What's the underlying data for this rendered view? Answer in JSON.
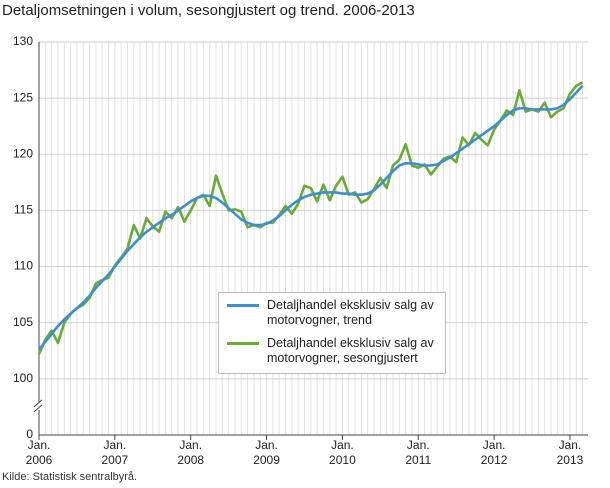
{
  "chart_data": {
    "type": "line",
    "title": "Detaljomsetningen i volum, sesongjustert og trend. 2006-2013",
    "source": "Kilde: Statistisk sentralbyrå.",
    "x": [
      "2006-01",
      "2006-02",
      "2006-03",
      "2006-04",
      "2006-05",
      "2006-06",
      "2006-07",
      "2006-08",
      "2006-09",
      "2006-10",
      "2006-11",
      "2006-12",
      "2007-01",
      "2007-02",
      "2007-03",
      "2007-04",
      "2007-05",
      "2007-06",
      "2007-07",
      "2007-08",
      "2007-09",
      "2007-10",
      "2007-11",
      "2007-12",
      "2008-01",
      "2008-02",
      "2008-03",
      "2008-04",
      "2008-05",
      "2008-06",
      "2008-07",
      "2008-08",
      "2008-09",
      "2008-10",
      "2008-11",
      "2008-12",
      "2009-01",
      "2009-02",
      "2009-03",
      "2009-04",
      "2009-05",
      "2009-06",
      "2009-07",
      "2009-08",
      "2009-09",
      "2009-10",
      "2009-11",
      "2009-12",
      "2010-01",
      "2010-02",
      "2010-03",
      "2010-04",
      "2010-05",
      "2010-06",
      "2010-07",
      "2010-08",
      "2010-09",
      "2010-10",
      "2010-11",
      "2010-12",
      "2011-01",
      "2011-02",
      "2011-03",
      "2011-04",
      "2011-05",
      "2011-06",
      "2011-07",
      "2011-08",
      "2011-09",
      "2011-10",
      "2011-11",
      "2011-12",
      "2012-01",
      "2012-02",
      "2012-03",
      "2012-04",
      "2012-05",
      "2012-06",
      "2012-07",
      "2012-08",
      "2012-09",
      "2012-10",
      "2012-11",
      "2012-12",
      "2013-01",
      "2013-02",
      "2013-03"
    ],
    "xticks": [
      {
        "value": "2006-01",
        "label": "Jan. 2006"
      },
      {
        "value": "2007-01",
        "label": "Jan. 2007"
      },
      {
        "value": "2008-01",
        "label": "Jan. 2008"
      },
      {
        "value": "2009-01",
        "label": "Jan. 2009"
      },
      {
        "value": "2010-01",
        "label": "Jan. 2010"
      },
      {
        "value": "2011-01",
        "label": "Jan. 2011"
      },
      {
        "value": "2012-01",
        "label": "Jan. 2012"
      },
      {
        "value": "2013-01",
        "label": "Jan. 2013"
      }
    ],
    "ylim": [
      0,
      130
    ],
    "y_break": [
      0,
      100
    ],
    "yticks": [
      0,
      100,
      105,
      110,
      115,
      120,
      125,
      130
    ],
    "grid": true,
    "legend": "lower center",
    "series": [
      {
        "name": "Detaljhandel eksklusiv salg av motorvogner, trend",
        "color": "#3b8fd0",
        "values": [
          102.6,
          103.3,
          104.0,
          104.7,
          105.3,
          105.8,
          106.3,
          106.8,
          107.4,
          108.1,
          108.7,
          109.3,
          110.0,
          110.7,
          111.4,
          112.0,
          112.6,
          113.1,
          113.5,
          113.9,
          114.3,
          114.6,
          115.0,
          115.4,
          115.8,
          116.1,
          116.3,
          116.3,
          116.1,
          115.7,
          115.2,
          114.7,
          114.2,
          113.9,
          113.7,
          113.7,
          113.8,
          114.1,
          114.5,
          115.0,
          115.5,
          115.9,
          116.2,
          116.4,
          116.5,
          116.6,
          116.6,
          116.6,
          116.5,
          116.5,
          116.4,
          116.4,
          116.5,
          116.8,
          117.3,
          117.9,
          118.5,
          119.0,
          119.2,
          119.2,
          119.1,
          119.0,
          119.0,
          119.1,
          119.4,
          119.7,
          120.1,
          120.5,
          120.9,
          121.3,
          121.7,
          122.1,
          122.5,
          123.0,
          123.5,
          123.9,
          124.1,
          124.1,
          124.0,
          124.0,
          124.0,
          124.0,
          124.1,
          124.4,
          124.9,
          125.5,
          126.1
        ]
      },
      {
        "name": "Detaljhandel eksklusiv salg av motorvogner, sesongjustert",
        "color": "#6aab35",
        "values": [
          102.2,
          103.5,
          104.3,
          103.2,
          105.0,
          105.8,
          106.3,
          106.6,
          107.2,
          108.5,
          108.8,
          109.0,
          110.1,
          110.8,
          111.6,
          113.7,
          112.5,
          114.3,
          113.6,
          113.1,
          114.9,
          114.3,
          115.3,
          114.0,
          115.0,
          116.1,
          116.4,
          115.4,
          118.1,
          116.5,
          115.0,
          115.1,
          114.9,
          113.5,
          113.7,
          113.5,
          113.9,
          113.9,
          114.6,
          115.4,
          114.7,
          115.6,
          117.2,
          117.0,
          115.8,
          117.3,
          115.9,
          117.2,
          118.0,
          116.4,
          116.6,
          115.7,
          116.0,
          116.9,
          117.9,
          117.0,
          119.0,
          119.5,
          120.9,
          119.0,
          118.8,
          119.1,
          118.2,
          118.9,
          119.6,
          119.8,
          119.3,
          121.5,
          120.8,
          121.9,
          121.3,
          120.8,
          122.2,
          123.0,
          123.9,
          123.5,
          125.7,
          123.8,
          124.0,
          123.8,
          124.6,
          123.3,
          123.8,
          124.1,
          125.4,
          126.1,
          126.4
        ]
      }
    ]
  }
}
